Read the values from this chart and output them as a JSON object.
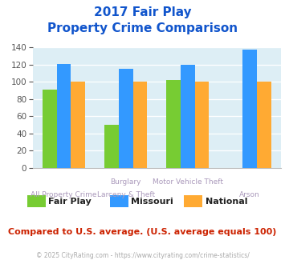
{
  "title_line1": "2017 Fair Play",
  "title_line2": "Property Crime Comparison",
  "cat_labels_top": [
    "",
    "Burglary",
    "Motor Vehicle Theft",
    ""
  ],
  "cat_labels_bot": [
    "All Property Crime",
    "Larceny & Theft",
    "",
    "Arson"
  ],
  "series": {
    "Fair Play": [
      91,
      50,
      102,
      0
    ],
    "Missouri": [
      121,
      115,
      120,
      138
    ],
    "National": [
      100,
      100,
      100,
      100
    ]
  },
  "colors": {
    "Fair Play": "#77cc33",
    "Missouri": "#3399ff",
    "National": "#ffaa33"
  },
  "ylim": [
    0,
    140
  ],
  "yticks": [
    0,
    20,
    40,
    60,
    80,
    100,
    120,
    140
  ],
  "plot_bg": "#ddeef5",
  "title_color": "#1155cc",
  "label_color": "#aa99bb",
  "footnote": "Compared to U.S. average. (U.S. average equals 100)",
  "footnote_color": "#cc2200",
  "copyright": "© 2025 CityRating.com - https://www.cityrating.com/crime-statistics/",
  "copyright_color": "#aaaaaa",
  "legend_labels": [
    "Fair Play",
    "Missouri",
    "National"
  ]
}
